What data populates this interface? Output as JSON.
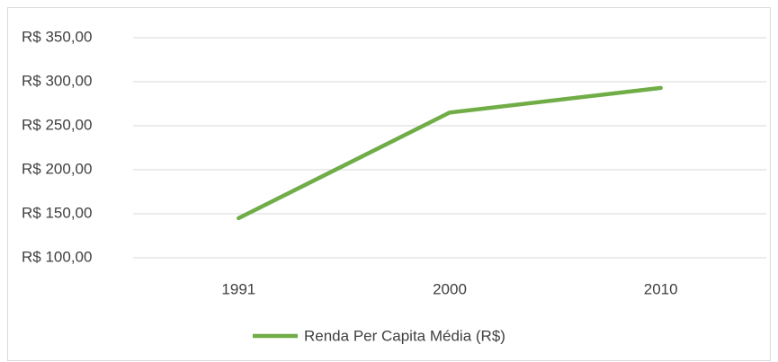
{
  "chart_data": {
    "type": "line",
    "categories": [
      "1991",
      "2000",
      "2010"
    ],
    "series": [
      {
        "name": "Renda Per Capita Média (R$)",
        "color": "#70ad47",
        "values": [
          145,
          265,
          293
        ]
      }
    ],
    "ylim": [
      100,
      350
    ],
    "yticks": [
      {
        "value": 100,
        "label": "R$ 100,00"
      },
      {
        "value": 150,
        "label": "R$ 150,00"
      },
      {
        "value": 200,
        "label": "R$ 200,00"
      },
      {
        "value": 250,
        "label": "R$ 250,00"
      },
      {
        "value": 300,
        "label": "R$ 300,00"
      },
      {
        "value": 350,
        "label": "R$ 350,00"
      }
    ],
    "grid": true,
    "legend": "bottom"
  }
}
